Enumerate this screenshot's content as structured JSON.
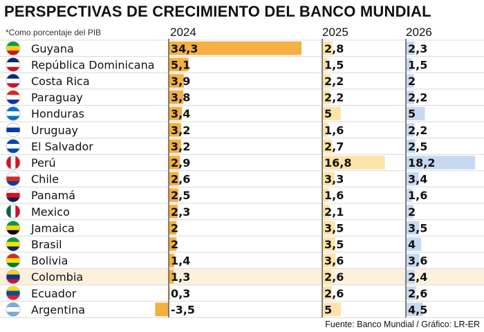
{
  "title": "PERSPECTIVAS DE CRECIMIENTO DEL BANCO MUNDIAL",
  "note": "*Como porcentaje del PIB",
  "source": "Fuente: Banco Mundial / Gráfico: LR-ER",
  "colors": {
    "bar_2024": "#f5b041",
    "bar_2025": "#fde3a7",
    "bar_2026": "#c6d9f0",
    "highlight_row": "#fdf1de",
    "grid": "#d9d9d9",
    "axis": "#444444"
  },
  "chart_data": {
    "type": "bar",
    "title": "PERSPECTIVAS DE CRECIMIENTO DEL BANCO MUNDIAL",
    "subtitle": "*Como porcentaje del PIB",
    "highlight": "Colombia",
    "categories": [
      "Guyana",
      "República Dominicana",
      "Costa Rica",
      "Paraguay",
      "Honduras",
      "Uruguay",
      "El Salvador",
      "Perú",
      "Chile",
      "Panamá",
      "Mexico",
      "Jamaica",
      "Brasil",
      "Bolivia",
      "Colombia",
      "Ecuador",
      "Argentina"
    ],
    "labels": {
      "2024": [
        "34,3",
        "5,1",
        "3,9",
        "3,8",
        "3,4",
        "3,2",
        "3,2",
        "2,9",
        "2,6",
        "2,5",
        "2,3",
        "2",
        "2",
        "1,4",
        "1,3",
        "0,3",
        "-3,5"
      ],
      "2025": [
        "2,8",
        "1,5",
        "2,2",
        "2,2",
        "5",
        "1,6",
        "2,7",
        "16,8",
        "3,3",
        "1,6",
        "2,1",
        "3,5",
        "3,5",
        "3,6",
        "2,6",
        "2,6",
        "5"
      ],
      "2026": [
        "2,3",
        "1,5",
        "2",
        "2,2",
        "5",
        "2,2",
        "2,5",
        "18,2",
        "3,4",
        "1,6",
        "2",
        "3,5",
        "4",
        "3,6",
        "2,4",
        "2,6",
        "4,5"
      ]
    },
    "series": [
      {
        "name": "2024",
        "values": [
          34.3,
          5.1,
          3.9,
          3.8,
          3.4,
          3.2,
          3.2,
          2.9,
          2.6,
          2.5,
          2.3,
          2,
          2,
          1.4,
          1.3,
          0.3,
          -3.5
        ]
      },
      {
        "name": "2025",
        "values": [
          2.8,
          1.5,
          2.2,
          2.2,
          5,
          1.6,
          2.7,
          16.8,
          3.3,
          1.6,
          2.1,
          3.5,
          3.5,
          3.6,
          2.6,
          2.6,
          5
        ]
      },
      {
        "name": "2026",
        "values": [
          2.3,
          1.5,
          2,
          2.2,
          5,
          2.2,
          2.5,
          18.2,
          3.4,
          1.6,
          2,
          3.5,
          4,
          3.6,
          2.4,
          2.6,
          4.5
        ]
      }
    ]
  },
  "flags": [
    {
      "country": "Guyana",
      "icon": "flag-guyana-icon"
    },
    {
      "country": "República Dominicana",
      "icon": "flag-dominican-republic-icon"
    },
    {
      "country": "Costa Rica",
      "icon": "flag-costa-rica-icon"
    },
    {
      "country": "Paraguay",
      "icon": "flag-paraguay-icon"
    },
    {
      "country": "Honduras",
      "icon": "flag-honduras-icon"
    },
    {
      "country": "Uruguay",
      "icon": "flag-uruguay-icon"
    },
    {
      "country": "El Salvador",
      "icon": "flag-el-salvador-icon"
    },
    {
      "country": "Perú",
      "icon": "flag-peru-icon"
    },
    {
      "country": "Chile",
      "icon": "flag-chile-icon"
    },
    {
      "country": "Panamá",
      "icon": "flag-panama-icon"
    },
    {
      "country": "Mexico",
      "icon": "flag-mexico-icon"
    },
    {
      "country": "Jamaica",
      "icon": "flag-jamaica-icon"
    },
    {
      "country": "Brasil",
      "icon": "flag-brazil-icon"
    },
    {
      "country": "Bolivia",
      "icon": "flag-bolivia-icon"
    },
    {
      "country": "Colombia",
      "icon": "flag-colombia-icon"
    },
    {
      "country": "Ecuador",
      "icon": "flag-ecuador-icon"
    },
    {
      "country": "Argentina",
      "icon": "flag-argentina-icon"
    }
  ]
}
